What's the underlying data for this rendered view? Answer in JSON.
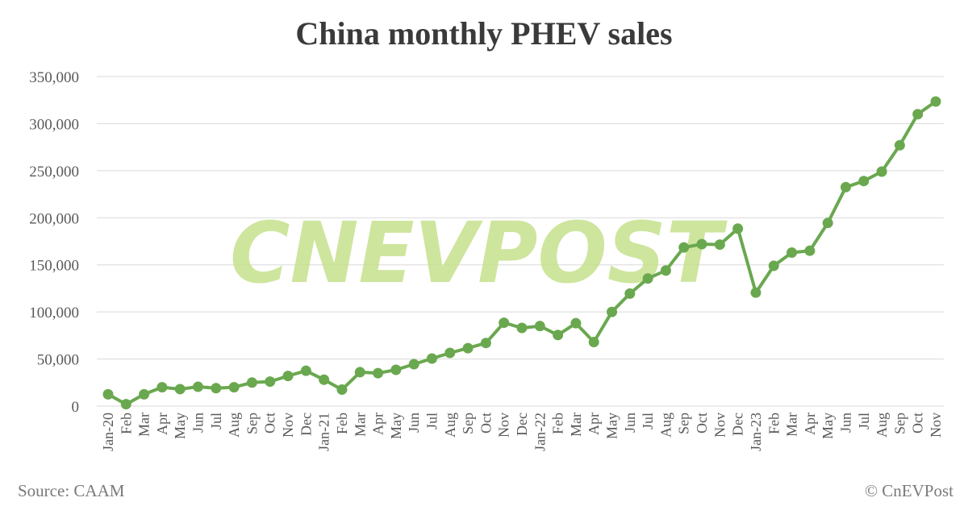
{
  "colors": {
    "line": "#6aa84f",
    "grid": "#d9d9d9",
    "watermark": "#c6e18c"
  },
  "footer": {
    "source": "Source: CAAM",
    "copyright": "© CnEVPost"
  },
  "watermark": "CNEVPOST",
  "chart_data": {
    "type": "line",
    "title": "China monthly PHEV sales",
    "xlabel": "",
    "ylabel": "",
    "ylim": [
      0,
      350000
    ],
    "yticks": [
      0,
      50000,
      100000,
      150000,
      200000,
      250000,
      300000,
      350000
    ],
    "ytick_labels": [
      "0",
      "50,000",
      "100,000",
      "150,000",
      "200,000",
      "250,000",
      "300,000",
      "350,000"
    ],
    "grid": true,
    "legend": "none",
    "categories": [
      "Jan-20",
      "Feb",
      "Mar",
      "Apr",
      "May",
      "Jun",
      "Jul",
      "Aug",
      "Sep",
      "Oct",
      "Nov",
      "Dec",
      "Jan-21",
      "Feb",
      "Mar",
      "Apr",
      "May",
      "Jun",
      "Jul",
      "Aug",
      "Sep",
      "Oct",
      "Nov",
      "Dec",
      "Jan-22",
      "Feb",
      "Mar",
      "Apr",
      "May",
      "Jun",
      "Jul",
      "Aug",
      "Sep",
      "Oct",
      "Nov",
      "Dec",
      "Jan-23",
      "Feb",
      "Mar",
      "Apr",
      "May",
      "Jun",
      "Jul",
      "Aug",
      "Sep",
      "Oct",
      "Nov"
    ],
    "series": [
      {
        "values": [
          12500,
          2000,
          12500,
          20000,
          18000,
          20500,
          19000,
          20000,
          25000,
          26000,
          32000,
          37500,
          28000,
          17500,
          36000,
          35000,
          38500,
          44500,
          50500,
          56500,
          61500,
          67000,
          88500,
          83000,
          85000,
          75500,
          88000,
          68000,
          100000,
          119500,
          135500,
          144000,
          168500,
          172000,
          171500,
          188500,
          120500,
          149000,
          163000,
          165000,
          194500,
          232500,
          239000,
          249000,
          277000,
          310000,
          323500
        ]
      }
    ]
  }
}
